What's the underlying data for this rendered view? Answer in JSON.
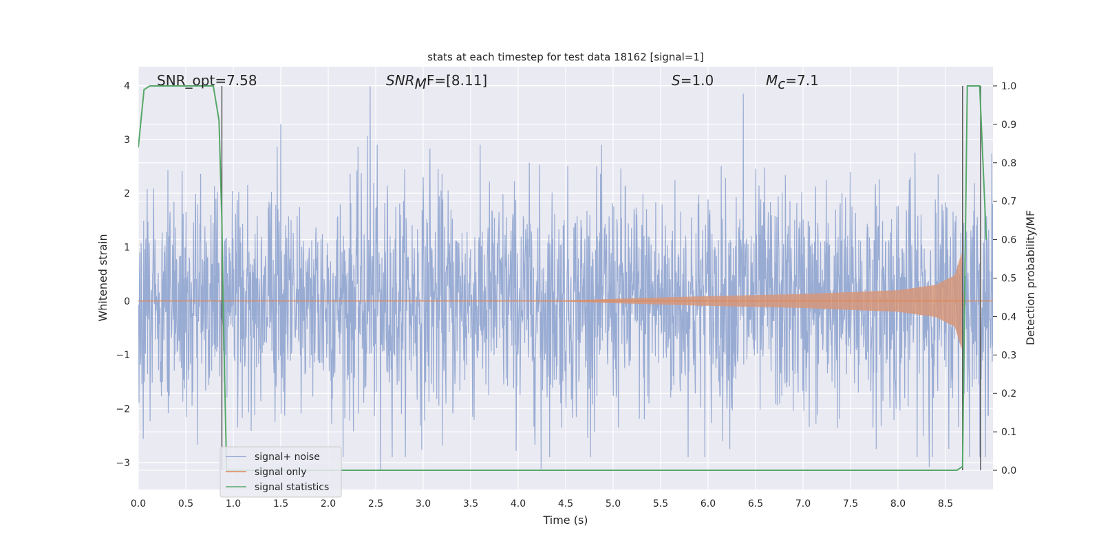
{
  "chart_data": {
    "type": "line",
    "title": "stats at each timestep for test data 18162 [signal=1]",
    "xlabel": "Time (s)",
    "ylabel": "Whitened strain",
    "y2label": "Detection probability/MF",
    "xlim": [
      0.0,
      9.0
    ],
    "ylim": [
      -3.5,
      4.35
    ],
    "y2lim": [
      -0.05,
      1.05
    ],
    "xticks": [
      "0.0",
      "0.5",
      "1.0",
      "1.5",
      "2.0",
      "2.5",
      "3.0",
      "3.5",
      "4.0",
      "4.5",
      "5.0",
      "5.5",
      "6.0",
      "6.5",
      "7.0",
      "7.5",
      "8.0",
      "8.5"
    ],
    "yticks": [
      "−3",
      "−2",
      "−1",
      "0",
      "1",
      "2",
      "3",
      "4"
    ],
    "y2ticks": [
      "0.0",
      "0.1",
      "0.2",
      "0.3",
      "0.4",
      "0.5",
      "0.6",
      "0.7",
      "0.8",
      "0.9",
      "1.0"
    ],
    "grid": true,
    "legend_position": "lower-left",
    "annotations": {
      "snr_opt": "SNR_opt=7.58",
      "snr_mf_base": "SNR",
      "snr_mf_sub": "M",
      "snr_mf_rest": "F=[8.11]",
      "s_label": "S",
      "s_value": "=1.0",
      "mc_base": "M",
      "mc_sub": "c",
      "mc_value": "=7.1"
    },
    "vertical_markers_s": [
      0.88,
      8.68,
      8.87
    ],
    "series": [
      {
        "name": "signal+ noise",
        "color": "#8fa4cf",
        "kind": "noise",
        "approx_amplitude": 1.4,
        "peaks": [
          {
            "x": 1.5,
            "y": 3.28
          },
          {
            "x": 2.41,
            "y": 3.06
          },
          {
            "x": 2.44,
            "y": 3.99
          },
          {
            "x": 3.07,
            "y": 2.83
          },
          {
            "x": 6.37,
            "y": 3.85
          },
          {
            "x": 2.55,
            "y": -3.15
          },
          {
            "x": 4.24,
            "y": -3.12
          },
          {
            "x": 8.33,
            "y": -3.08
          }
        ]
      },
      {
        "name": "signal only",
        "color": "#dd8452",
        "kind": "chirp",
        "envelope": [
          {
            "x": 0.0,
            "y": 0.0
          },
          {
            "x": 4.5,
            "y": 0.01
          },
          {
            "x": 5.0,
            "y": 0.04
          },
          {
            "x": 6.0,
            "y": 0.09
          },
          {
            "x": 7.0,
            "y": 0.13
          },
          {
            "x": 8.0,
            "y": 0.2
          },
          {
            "x": 8.4,
            "y": 0.3
          },
          {
            "x": 8.6,
            "y": 0.48
          },
          {
            "x": 8.67,
            "y": 0.9
          },
          {
            "x": 8.69,
            "y": 0.0
          },
          {
            "x": 9.0,
            "y": 0.0
          }
        ]
      },
      {
        "name": "signal statistics",
        "color": "#55a868",
        "axis": "right",
        "points": [
          [
            0.0,
            0.84
          ],
          [
            0.06,
            0.99
          ],
          [
            0.12,
            1.0
          ],
          [
            0.79,
            1.0
          ],
          [
            0.85,
            0.91
          ],
          [
            0.88,
            0.65
          ],
          [
            0.9,
            0.35
          ],
          [
            0.93,
            0.0
          ],
          [
            8.62,
            0.0
          ],
          [
            8.68,
            0.01
          ],
          [
            8.73,
            1.0
          ],
          [
            8.8,
            1.0
          ],
          [
            8.86,
            1.0
          ],
          [
            8.93,
            0.6
          ]
        ]
      }
    ]
  }
}
